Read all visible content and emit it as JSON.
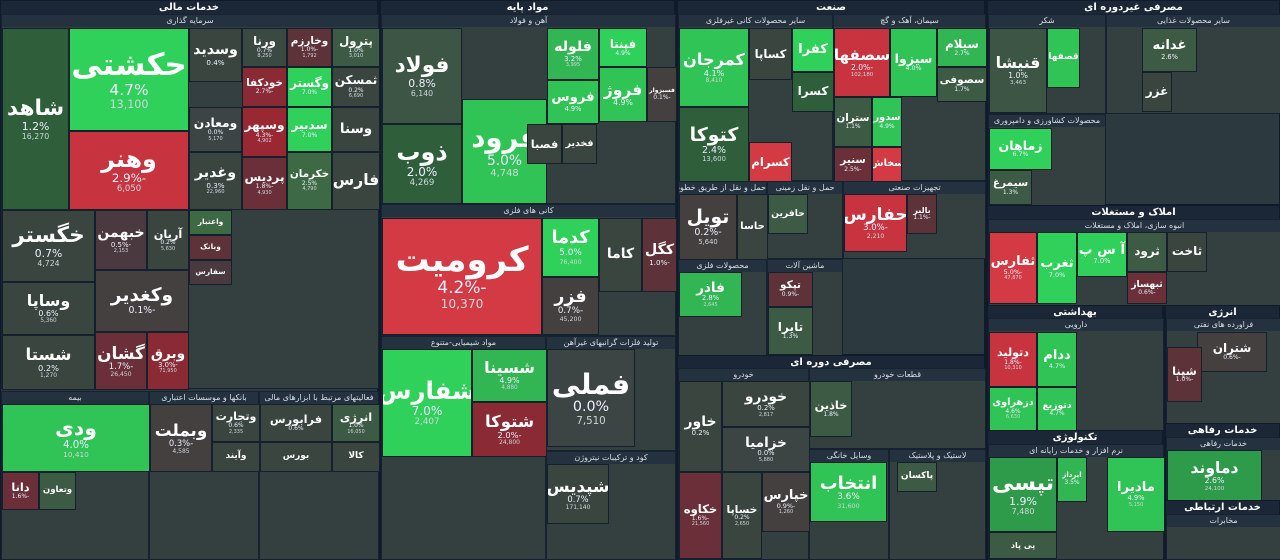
{
  "sectors": [
    {
      "title": "خدمات مالی",
      "groups": [
        {
          "title": "سرمایه گذاری",
          "tiles": [
            {
              "name": "حکشتی",
              "change": "4.7%",
              "price": "13,100",
              "color": "#2fd15a"
            },
            {
              "name": "وهنر",
              "change": "-2.9%",
              "price": "6,050",
              "color": "#c7343f"
            },
            {
              "name": "شاهد",
              "change": "1.2%",
              "price": "16,270",
              "color": "#2e5e3a"
            },
            {
              "name": "خگستر",
              "change": "0.7%",
              "price": "4,724",
              "color": "#3a4540"
            },
            {
              "name": "وساپا",
              "change": "0.6%",
              "price": "5,360",
              "color": "#3a4540"
            },
            {
              "name": "شستا",
              "change": "0.2%",
              "price": "1,270",
              "color": "#3a4540"
            },
            {
              "name": "خبهمن",
              "change": "-0.5%",
              "price": "2,153",
              "color": "#4a3a40"
            },
            {
              "name": "آریان",
              "change": "0.2%",
              "price": "5,630",
              "color": "#3a4540"
            },
            {
              "name": "وکغدیر",
              "change": "-0.1%",
              "color": "#43403f"
            },
            {
              "name": "گشان",
              "change": "-1.7%",
              "price": "26,450",
              "color": "#6a2f38"
            },
            {
              "name": "وبرق",
              "change": "-3.0%",
              "price": "71,950",
              "color": "#8a2a35"
            },
            {
              "name": "وسدید",
              "change": "0.4%",
              "color": "#3a4540"
            },
            {
              "name": "ورنا",
              "change": "0.7%",
              "price": "8,250",
              "color": "#3a4a42"
            },
            {
              "name": "وخارزم",
              "change": "-1.0%",
              "price": "1,792",
              "color": "#5d3238"
            },
            {
              "name": "پترول",
              "change": "1.0%",
              "price": "3,010",
              "color": "#3d5a45"
            },
            {
              "name": "ومعادن",
              "change": "0.0%",
              "price": "5,170",
              "color": "#3c4444"
            },
            {
              "name": "خودکفا",
              "change": "-2.7%",
              "color": "#8a2a35"
            },
            {
              "name": "وگستر",
              "change": "7.0%",
              "color": "#2fd15a"
            },
            {
              "name": "ثمسکن",
              "change": "0.2%",
              "price": "6,690",
              "color": "#3a4540"
            },
            {
              "name": "وسپهر",
              "change": "-4.3%",
              "price": "4,902",
              "color": "#9a2832"
            },
            {
              "name": "سدبیر",
              "change": "7.0%",
              "color": "#2fd15a"
            },
            {
              "name": "وسنا",
              "color": "#3a4540"
            },
            {
              "name": "وغدیر",
              "change": "0.3%",
              "price": "22,960",
              "color": "#3a4540"
            },
            {
              "name": "پردیس",
              "change": "-1.8%",
              "price": "4,930",
              "color": "#6a2f38"
            },
            {
              "name": "خکرمان",
              "change": "2.5%",
              "price": "4,790",
              "color": "#3d6a45"
            },
            {
              "name": "فارس",
              "color": "#3a4540"
            },
            {
              "name": "واعتبار",
              "color": "#3d6a45"
            },
            {
              "name": "وبانک",
              "color": "#5d3238"
            },
            {
              "name": "سفارس",
              "color": "#4a3a40"
            }
          ]
        },
        {
          "title": "بیمه",
          "tiles": [
            {
              "name": "ودی",
              "change": "4.0%",
              "price": "10,410",
              "color": "#2fc455"
            },
            {
              "name": "دانا",
              "change": "-1.6%",
              "color": "#6a2f38"
            },
            {
              "name": "وتعاون",
              "color": "#3d5a45"
            }
          ]
        },
        {
          "title": "بانکها و موسسات اعتباری",
          "tiles": [
            {
              "name": "وبملت",
              "change": "-0.3%",
              "price": "4,585",
              "color": "#43403f"
            },
            {
              "name": "وتجارت",
              "change": "0.6%",
              "price": "2,335",
              "color": "#3a4540"
            },
            {
              "name": "وآیند",
              "color": "#3a4540"
            }
          ]
        },
        {
          "title": "فعالیتهای مرتبط با ابزارهای مالی",
          "tiles": [
            {
              "name": "فرابورس",
              "change": "0.6%",
              "color": "#3a4540"
            },
            {
              "name": "انرژی",
              "change": "1.0%",
              "price": "16,050",
              "color": "#3d5a45"
            },
            {
              "name": "بورس",
              "color": "#3a4540"
            },
            {
              "name": "کالا",
              "color": "#3a4540"
            }
          ]
        }
      ]
    },
    {
      "title": "مواد پایه",
      "groups": [
        {
          "title": "آهن و فولاد",
          "tiles": [
            {
              "name": "فولاد",
              "change": "0.8%",
              "price": "6,140",
              "color": "#3d5545"
            },
            {
              "name": "ذوب",
              "change": "2.0%",
              "price": "4,269",
              "color": "#2e5e3a"
            },
            {
              "name": "فرود",
              "change": "5.0%",
              "price": "4,748",
              "color": "#2fc455"
            },
            {
              "name": "فلوله",
              "change": "3.2%",
              "price": "3,995",
              "color": "#32b553"
            },
            {
              "name": "فروس",
              "change": "4.9%",
              "color": "#2fc455"
            },
            {
              "name": "فپنتا",
              "change": "4.9%",
              "color": "#2fd15a"
            },
            {
              "name": "فروژ",
              "change": "4.9%",
              "color": "#2fc455"
            },
            {
              "name": "فسبزوار",
              "change": "-0.1%",
              "color": "#43403f"
            },
            {
              "name": "فصبا",
              "color": "#3a4540"
            },
            {
              "name": "فخدیر",
              "color": "#3a4540"
            }
          ]
        },
        {
          "title": "کانی های فلزی",
          "tiles": [
            {
              "name": "کرومیت",
              "change": "-4.2%",
              "price": "10,370",
              "color": "#d33a44"
            },
            {
              "name": "کدما",
              "change": "5.0%",
              "price": "76,400",
              "color": "#2fd15a"
            },
            {
              "name": "فزر",
              "change": "-0.7%",
              "price": "45,200",
              "color": "#43403f"
            },
            {
              "name": "کاما",
              "color": "#3a4540"
            },
            {
              "name": "کگل",
              "change": "-1.0%",
              "color": "#5d3238"
            }
          ]
        },
        {
          "title": "مواد شیمیایی-متنوع",
          "tiles": [
            {
              "name": "شفارس",
              "change": "7.0%",
              "price": "2,407",
              "color": "#2fd15a"
            },
            {
              "name": "شسینا",
              "change": "4.9%",
              "price": "4,880",
              "color": "#32b553"
            },
            {
              "name": "شتوکا",
              "change": "-2.0%",
              "price": "24,800",
              "color": "#8a2a35"
            }
          ]
        },
        {
          "title": "تولید فلزات گرانبهای غیرآهن",
          "tiles": [
            {
              "name": "فملی",
              "change": "0.0%",
              "price": "7,510",
              "color": "#3c4444"
            }
          ]
        },
        {
          "title": "کود و ترکیبات نیتروژن",
          "tiles": [
            {
              "name": "شپدیس",
              "change": "0.7%",
              "price": "171,140",
              "color": "#3a4540"
            }
          ]
        }
      ]
    },
    {
      "title": "صنعت",
      "groups": [
        {
          "title": "سایر محصولات کانی غیرفلزی",
          "tiles": [
            {
              "name": "کمرجان",
              "change": "4.1%",
              "price": "8,410",
              "color": "#2fc455"
            },
            {
              "name": "کتوکا",
              "change": "2.4%",
              "price": "13,600",
              "color": "#2e5e3a"
            },
            {
              "name": "کساپا",
              "color": "#3a4540"
            },
            {
              "name": "کفرا",
              "color": "#2fd15a"
            },
            {
              "name": "کسرا",
              "color": "#2e5e3a"
            },
            {
              "name": "کسرام",
              "color": "#d33a44"
            }
          ]
        },
        {
          "title": "سیمان، آهک و گچ",
          "tiles": [
            {
              "name": "سصفها",
              "change": "-2.0%",
              "price": "102,180",
              "color": "#c7343f"
            },
            {
              "name": "سیزوا",
              "change": "4.0%",
              "color": "#2fc455"
            },
            {
              "name": "سیلام",
              "change": "2.7%",
              "color": "#32b553"
            },
            {
              "name": "سصوفی",
              "change": "1.7%",
              "color": "#3d5a45"
            },
            {
              "name": "ستران",
              "change": "1.1%",
              "color": "#3d5a45"
            },
            {
              "name": "سدور",
              "change": "4.9%",
              "color": "#2fc455"
            },
            {
              "name": "سنیر",
              "change": "-2.5%",
              "color": "#6a2f38"
            },
            {
              "name": "سخاش",
              "color": "#d33a44"
            }
          ]
        },
        {
          "title": "حمل و نقل از طریق خطوط راه آهن",
          "tiles": [
            {
              "name": "تویل",
              "change": "-0.2%",
              "price": "5,640",
              "color": "#43403f"
            },
            {
              "name": "حاسا",
              "color": "#3a4540"
            }
          ]
        },
        {
          "title": "حمل و نقل زمینی",
          "tiles": [
            {
              "name": "حافرین",
              "color": "#3d5a45"
            }
          ]
        },
        {
          "title": "تجهیزات صنعتی",
          "tiles": [
            {
              "name": "حفارس",
              "change": "-3.0%",
              "price": "2,210",
              "color": "#c7343f"
            },
            {
              "name": "بالبر",
              "change": "-1.1%",
              "color": "#5d3238"
            }
          ]
        },
        {
          "title": "محصولات فلزی",
          "tiles": [
            {
              "name": "فاذر",
              "change": "2.8%",
              "price": "2,645",
              "color": "#32b553"
            }
          ]
        },
        {
          "title": "ماشین آلات",
          "tiles": [
            {
              "name": "تپکو",
              "change": "-0.9%",
              "color": "#5d3238"
            },
            {
              "name": "تایرا",
              "change": "1.3%",
              "color": "#3d5a45"
            }
          ]
        }
      ]
    },
    {
      "title": "مصرفی دوره ای",
      "groups": [
        {
          "title": "خودرو",
          "tiles": [
            {
              "name": "خاور",
              "change": "0.2%",
              "color": "#3a4540"
            },
            {
              "name": "خودرو",
              "change": "0.2%",
              "price": "2,817",
              "color": "#3a4540"
            },
            {
              "name": "خزامیا",
              "change": "0.0%",
              "price": "5,880",
              "color": "#3c4444"
            },
            {
              "name": "خکاوه",
              "change": "-1.6%",
              "price": "21,560",
              "color": "#6a2f38"
            },
            {
              "name": "خساپا",
              "change": "0.2%",
              "price": "2,650",
              "color": "#3a4540"
            },
            {
              "name": "خپارس",
              "change": "-0.9%",
              "price": "1,260",
              "color": "#43403f"
            }
          ]
        },
        {
          "title": "قطعات خودرو",
          "tiles": [
            {
              "name": "خاذین",
              "change": "1.8%",
              "color": "#3d5a45"
            }
          ]
        },
        {
          "title": "وسایل خانگی",
          "tiles": [
            {
              "name": "انتخاب",
              "change": "3.6%",
              "price": "31,600",
              "color": "#2fc455"
            }
          ]
        },
        {
          "title": "لاستیک و پلاستیک",
          "tiles": [
            {
              "name": "پاکسان",
              "color": "#3d5a45"
            }
          ]
        }
      ]
    },
    {
      "title": "مصرفی غیردوره ای",
      "groups": [
        {
          "title": "شکر",
          "tiles": [
            {
              "name": "قنیشا",
              "change": "1.0%",
              "price": "3,463",
              "color": "#3d5545"
            },
            {
              "name": "قصفها",
              "color": "#2fc455"
            }
          ]
        },
        {
          "title": "سایر محصولات غذایی",
          "tiles": [
            {
              "name": "غدانه",
              "change": "2.6%",
              "color": "#3d5a45"
            },
            {
              "name": "غزر",
              "color": "#3a4540"
            }
          ]
        },
        {
          "title": "محصولات کشاورزی و دامپروری",
          "tiles": [
            {
              "name": "زماهان",
              "change": "6.7%",
              "color": "#2fd15a"
            },
            {
              "name": "سیمرغ",
              "change": "1.3%",
              "color": "#3d5a45"
            }
          ]
        }
      ]
    },
    {
      "title": "املاک و مستغلات",
      "groups": [
        {
          "title": "انبوه سازی، املاک و مستغلات",
          "tiles": [
            {
              "name": "ثفارس",
              "change": "-5.0%",
              "price": "47,870",
              "color": "#d33a44"
            },
            {
              "name": "ثغرب",
              "change": "7.0%",
              "color": "#2fd15a"
            },
            {
              "name": "آ س پ",
              "change": "7.0%",
              "color": "#2fd15a"
            },
            {
              "name": "ثرود",
              "color": "#3d5a45"
            },
            {
              "name": "ثاخت",
              "color": "#3a4540"
            },
            {
              "name": "ثبهساز",
              "change": "-0.6%",
              "color": "#6a2f38"
            }
          ]
        }
      ]
    },
    {
      "title": "بهداشتی",
      "groups": [
        {
          "title": "دارویی",
          "tiles": [
            {
              "name": "دتولید",
              "change": "-1.8%",
              "price": "10,310",
              "color": "#c7343f"
            },
            {
              "name": "ددام",
              "change": "4.7%",
              "color": "#2fc455"
            },
            {
              "name": "دزهراوی",
              "change": "4.6%",
              "price": "6,630",
              "color": "#2fc455"
            },
            {
              "name": "دتوزیع",
              "change": "4.7%",
              "color": "#2fc455"
            }
          ]
        }
      ]
    },
    {
      "title": "انرژی",
      "groups": [
        {
          "title": "فراورده های نفتی",
          "tiles": [
            {
              "name": "شتران",
              "change": "-0.6%",
              "color": "#43403f"
            },
            {
              "name": "شپنا",
              "change": "-1.0%",
              "color": "#5d3238"
            }
          ]
        }
      ]
    },
    {
      "title": "تکنولوژی",
      "groups": [
        {
          "title": "نرم افزار و خدمات رایانه ای",
          "tiles": [
            {
              "name": "تپسی",
              "change": "1.9%",
              "price": "7,480",
              "color": "#2e9b4a"
            },
            {
              "name": "ایرداز",
              "change": "3.5%",
              "color": "#32b553"
            },
            {
              "name": "پی پاد",
              "color": "#3d5a45"
            },
            {
              "name": "مادیرا",
              "change": "4.9%",
              "price": "5,150",
              "color": "#2fc455"
            }
          ]
        }
      ]
    },
    {
      "title": "خدمات رفاهی",
      "groups": [
        {
          "title": "خدمات رفاهی",
          "tiles": [
            {
              "name": "دماوند",
              "change": "2.6%",
              "price": "24,100",
              "color": "#2e9b4a"
            }
          ]
        }
      ]
    },
    {
      "title": "خدمات ارتباطی",
      "groups": [
        {
          "title": "مخابرات",
          "tiles": []
        }
      ]
    }
  ]
}
